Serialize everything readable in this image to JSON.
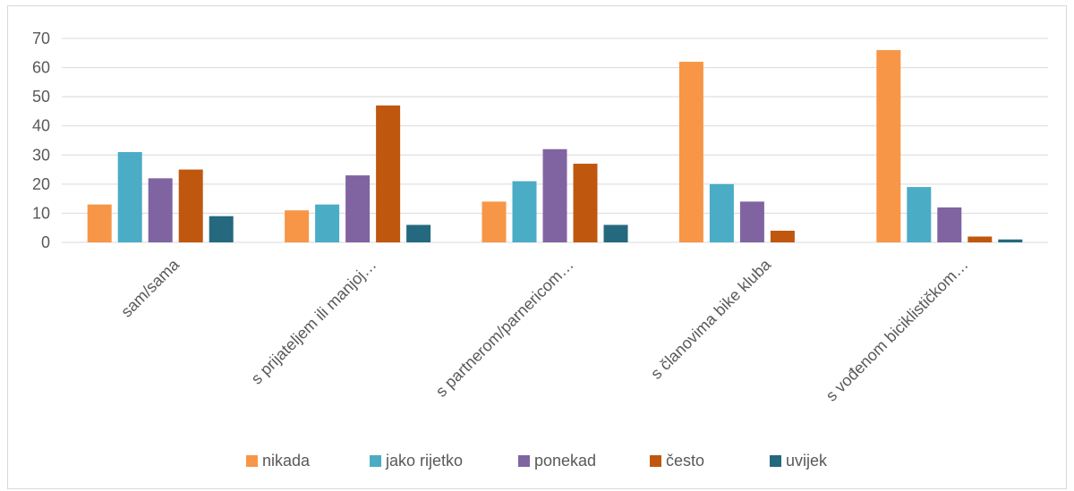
{
  "chart_data": {
    "type": "bar",
    "categories": [
      "sam/sama",
      "s prijateljem ili manjoj…",
      "s partnerom/parnericom…",
      "s članovima bike kluba",
      "s vođenom biciklističkom…"
    ],
    "series": [
      {
        "name": "nikada",
        "color": "#f79646",
        "values": [
          13,
          11,
          14,
          62,
          66
        ]
      },
      {
        "name": "jako rijetko",
        "color": "#4bacc6",
        "values": [
          31,
          13,
          21,
          20,
          19
        ]
      },
      {
        "name": "ponekad",
        "color": "#8064a2",
        "values": [
          22,
          23,
          32,
          14,
          12
        ]
      },
      {
        "name": "često",
        "color": "#c0570e",
        "values": [
          25,
          47,
          27,
          4,
          2
        ]
      },
      {
        "name": "uvijek",
        "color": "#24697e",
        "values": [
          9,
          6,
          6,
          0,
          1
        ]
      }
    ],
    "ylim": [
      0,
      70
    ],
    "yticks": [
      0,
      10,
      20,
      30,
      40,
      50,
      60,
      70
    ],
    "grid": true,
    "legend_position": "bottom",
    "gridline_color": "#d9d9d9",
    "text_color": "#595959"
  }
}
